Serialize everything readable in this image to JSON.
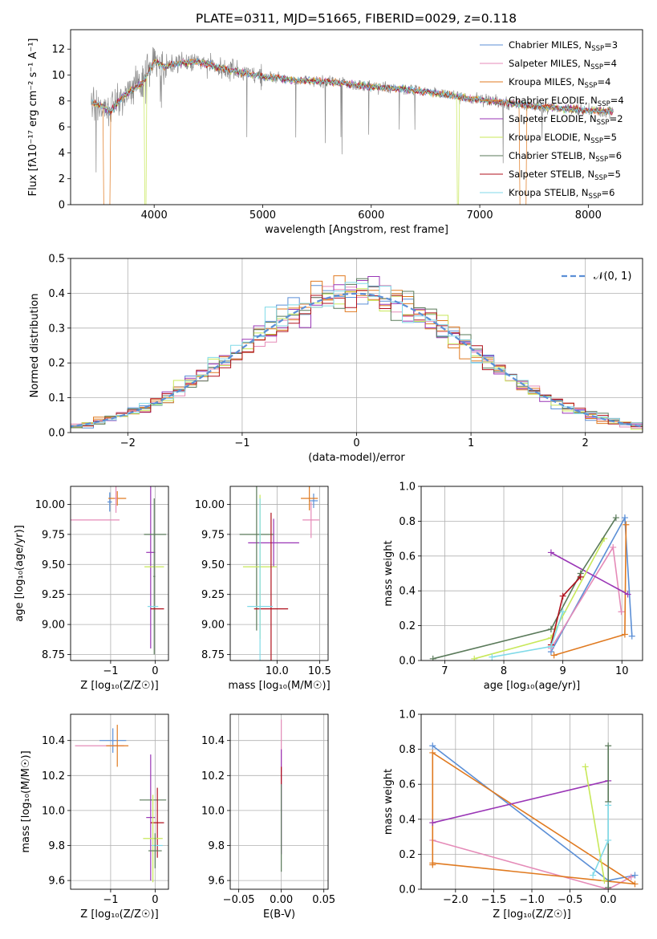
{
  "title": "PLATE=0311, MJD=51665, FIBERID=0029, z=0.118",
  "colors": {
    "chabrier_miles": "#5b8fd6",
    "salpeter_miles": "#e58bb8",
    "kroupa_miles": "#e07a20",
    "chabrier_elodie": "#e07a20",
    "salpeter_elodie": "#9a36b6",
    "kroupa_elodie": "#c8e85a",
    "chabrier_stelib": "#5a7a5a",
    "salpeter_stelib": "#b0101c",
    "kroupa_stelib": "#80dae8",
    "data_gray": "#8c8c8c",
    "normal_curve": "#5b8fd6"
  },
  "chart_data": [
    {
      "type": "line",
      "panel": "spectrum",
      "title": "PLATE=0311, MJD=51665, FIBERID=0029, z=0.118",
      "xlabel": "wavelength [Angstrom, rest frame]",
      "ylabel": "Flux [fλ10⁻¹⁷ erg cm⁻² s⁻¹ A⁻¹]",
      "xlim": [
        3230,
        8500
      ],
      "ylim": [
        0,
        13.5
      ],
      "xticks": [
        4000,
        5000,
        6000,
        7000,
        8000
      ],
      "yticks": [
        0,
        2,
        4,
        6,
        8,
        10,
        12
      ],
      "legend_position": "top-right",
      "legend": [
        "Chabrier MILES, N_SSP=3",
        "Salpeter MILES, N_SSP=4",
        "Kroupa MILES, N_SSP=4",
        "Chabrier ELODIE, N_SSP=4",
        "Salpeter ELODIE, N_SSP=2",
        "Kroupa ELODIE, N_SSP=5",
        "Chabrier STELIB, N_SSP=6",
        "Salpeter STELIB, N_SSP=5",
        "Kroupa STELIB, N_SSP=6"
      ],
      "model_continuum": {
        "x": [
          3420,
          3500,
          3600,
          3700,
          3800,
          3900,
          4000,
          4100,
          4200,
          4400,
          4600,
          4800,
          5000,
          5300,
          5600,
          6000,
          6300,
          6600,
          6900,
          7200,
          7500,
          7800,
          8100,
          8230
        ],
        "y": [
          7.9,
          7.7,
          7.2,
          8.2,
          8.9,
          9.4,
          11.1,
          10.6,
          10.9,
          11.0,
          10.6,
          10.2,
          9.9,
          9.6,
          9.5,
          9.1,
          8.9,
          8.6,
          8.2,
          7.9,
          7.6,
          7.4,
          7.2,
          7.2
        ]
      },
      "gaps": [
        {
          "series": "Chabrier ELODIE",
          "x": [
            3530,
            3595,
            7370,
            7430
          ]
        },
        {
          "series": "Kroupa ELODIE",
          "x": [
            3910,
            3925,
            6790,
            6810
          ]
        }
      ]
    },
    {
      "type": "histogram",
      "panel": "residuals",
      "xlabel": "(data-model)/error",
      "ylabel": "Normed distribution",
      "xlim": [
        -2.5,
        2.5
      ],
      "ylim": [
        0,
        0.5
      ],
      "xticks": [
        -2,
        -1,
        0,
        1,
        2
      ],
      "yticks": [
        0.0,
        0.1,
        0.2,
        0.3,
        0.4,
        0.5
      ],
      "bin_width": 0.1,
      "grid": true,
      "legend_position": "top-right",
      "legend": [
        "𝒩(0, 1)"
      ],
      "reference_curve": "standard normal, mean 0, sigma 1"
    },
    {
      "type": "scatter",
      "panel": "age_vs_Z",
      "xlabel": "Z [log₁₀(Z/Z☉)]",
      "ylabel": "age  [log₁₀(age/yr)]",
      "xlim": [
        -1.9,
        0.3
      ],
      "ylim": [
        8.7,
        10.15
      ],
      "xticks": [
        -1,
        0
      ],
      "yticks": [
        8.75,
        9.0,
        9.25,
        9.5,
        9.75,
        10.0
      ],
      "grid": true,
      "points": [
        {
          "series": "Chabrier MILES",
          "x": -1.02,
          "y": 10.02,
          "xerr": 0.05,
          "yerr": 0.08
        },
        {
          "series": "Salpeter MILES",
          "x": -1.35,
          "y": 9.87,
          "xerr": 0.55,
          "yerr": 0.0
        },
        {
          "series": "Kroupa MILES",
          "x": -0.85,
          "y": 10.05,
          "xerr": 0.2,
          "yerr": 0.06
        },
        {
          "series": "Salpeter MILES",
          "x": -0.88,
          "y": 10.05,
          "xerr": 0.03,
          "yerr": 0.12
        },
        {
          "series": "Salpeter ELODIE",
          "x": -0.1,
          "y": 9.6,
          "xerr": 0.1,
          "yerr": 0.8
        },
        {
          "series": "Chabrier STELIB",
          "x": 0.0,
          "y": 9.75,
          "xerr": 0.25,
          "yerr": 0.0
        },
        {
          "series": "Kroupa ELODIE",
          "x": -0.02,
          "y": 9.48,
          "xerr": 0.22,
          "yerr": 0.0
        },
        {
          "series": "Chabrier STELIB",
          "x": -0.02,
          "y": 9.4,
          "xerr": 0.02,
          "yerr": 0.65
        },
        {
          "series": "Salpeter STELIB",
          "x": 0.05,
          "y": 9.13,
          "xerr": 0.15,
          "yerr": 0.0
        },
        {
          "series": "Kroupa STELIB",
          "x": -0.05,
          "y": 9.15,
          "xerr": 0.12,
          "yerr": 0.0
        }
      ]
    },
    {
      "type": "scatter",
      "panel": "age_vs_mass",
      "xlabel": "mass [log₁₀(M/M☉)]",
      "xlim": [
        9.45,
        10.6
      ],
      "ylim": [
        8.7,
        10.15
      ],
      "xticks": [
        10.0,
        10.5
      ],
      "yticks": [
        8.75,
        9.0,
        9.25,
        9.5,
        9.75,
        10.0
      ],
      "grid": true,
      "points": [
        {
          "series": "Chabrier MILES",
          "x": 10.43,
          "y": 10.03,
          "xerr": 0.05,
          "yerr": 0.06
        },
        {
          "series": "Kroupa MILES",
          "x": 10.38,
          "y": 10.05,
          "xerr": 0.1,
          "yerr": 0.1
        },
        {
          "series": "Salpeter MILES",
          "x": 10.4,
          "y": 9.87,
          "xerr": 0.1,
          "yerr": 0.15
        },
        {
          "series": "Salpeter ELODIE",
          "x": 9.96,
          "y": 9.68,
          "xerr": 0.3,
          "yerr": 0.2
        },
        {
          "series": "Chabrier STELIB",
          "x": 9.76,
          "y": 9.75,
          "xerr": 0.2,
          "yerr": 0.8
        },
        {
          "series": "Kroupa ELODIE",
          "x": 9.8,
          "y": 9.48,
          "xerr": 0.2,
          "yerr": 0.6
        },
        {
          "series": "Salpeter STELIB",
          "x": 9.93,
          "y": 9.13,
          "xerr": 0.2,
          "yerr": 0.8
        },
        {
          "series": "Kroupa STELIB",
          "x": 9.8,
          "y": 9.15,
          "xerr": 0.15,
          "yerr": 0.9
        }
      ]
    },
    {
      "type": "line",
      "panel": "mass_weight_vs_age",
      "xlabel": "age  [log₁₀(age/yr)]",
      "ylabel": "mass weight",
      "xlim": [
        6.6,
        10.35
      ],
      "ylim": [
        0,
        1.0
      ],
      "xticks": [
        7,
        8,
        9,
        10
      ],
      "yticks": [
        0.0,
        0.2,
        0.4,
        0.6,
        0.8,
        1.0
      ],
      "grid": true,
      "series": [
        {
          "name": "Chabrier MILES",
          "x": [
            8.8,
            10.05,
            10.17
          ],
          "y": [
            0.05,
            0.82,
            0.14
          ]
        },
        {
          "name": "Salpeter MILES",
          "x": [
            8.8,
            9.85,
            9.99
          ],
          "y": [
            0.07,
            0.65,
            0.28
          ]
        },
        {
          "name": "Kroupa MILES",
          "x": [
            8.85,
            10.05,
            10.07
          ],
          "y": [
            0.03,
            0.15,
            0.78
          ]
        },
        {
          "name": "Salpeter ELODIE",
          "x": [
            8.8,
            10.1
          ],
          "y": [
            0.62,
            0.38
          ]
        },
        {
          "name": "Kroupa ELODIE",
          "x": [
            7.5,
            8.8,
            9.7
          ],
          "y": [
            0.01,
            0.13,
            0.7
          ]
        },
        {
          "name": "Chabrier STELIB",
          "x": [
            6.8,
            8.8,
            9.3,
            9.9
          ],
          "y": [
            0.01,
            0.18,
            0.5,
            0.82
          ]
        },
        {
          "name": "Salpeter STELIB",
          "x": [
            8.8,
            9.0,
            9.3
          ],
          "y": [
            0.09,
            0.37,
            0.48
          ]
        },
        {
          "name": "Kroupa STELIB",
          "x": [
            7.8,
            8.8,
            9.0
          ],
          "y": [
            0.02,
            0.08,
            0.28
          ]
        }
      ]
    },
    {
      "type": "scatter",
      "panel": "mass_vs_Z",
      "xlabel": "Z [log₁₀(Z/Z☉)]",
      "ylabel": "mass [log₁₀(M/M☉)]",
      "xlim": [
        -1.9,
        0.3
      ],
      "ylim": [
        9.55,
        10.55
      ],
      "xticks": [
        -1,
        0
      ],
      "yticks": [
        9.6,
        9.8,
        10.0,
        10.2,
        10.4
      ],
      "grid": true,
      "points": [
        {
          "series": "Chabrier MILES",
          "x": -0.95,
          "y": 10.4,
          "xerr": 0.3,
          "yerr": 0.07
        },
        {
          "series": "Salpeter MILES",
          "x": -1.25,
          "y": 10.37,
          "xerr": 0.55,
          "yerr": 0.0
        },
        {
          "series": "Kroupa MILES",
          "x": -0.85,
          "y": 10.37,
          "xerr": 0.25,
          "yerr": 0.12
        },
        {
          "series": "Salpeter ELODIE",
          "x": -0.1,
          "y": 9.96,
          "xerr": 0.1,
          "yerr": 0.36
        },
        {
          "series": "Chabrier STELIB",
          "x": -0.05,
          "y": 10.06,
          "xerr": 0.3,
          "yerr": 0.0
        },
        {
          "series": "Salpeter STELIB",
          "x": 0.05,
          "y": 9.93,
          "xerr": 0.15,
          "yerr": 0.2
        },
        {
          "series": "Kroupa ELODIE",
          "x": -0.05,
          "y": 9.84,
          "xerr": 0.22,
          "yerr": 0.25
        },
        {
          "series": "Kroupa STELIB",
          "x": 0.05,
          "y": 9.8,
          "xerr": 0.12,
          "yerr": 0.0
        },
        {
          "series": "Chabrier STELIB",
          "x": 0.0,
          "y": 9.77,
          "xerr": 0.15,
          "yerr": 0.1
        }
      ]
    },
    {
      "type": "scatter",
      "panel": "mass_vs_ebv",
      "xlabel": "E(B-V)",
      "xlim": [
        -0.06,
        0.055
      ],
      "ylim": [
        9.55,
        10.55
      ],
      "xticks": [
        -0.05,
        0.0,
        0.05
      ],
      "yticks": [
        9.6,
        9.8,
        10.0,
        10.2,
        10.4
      ],
      "grid": true,
      "points": [
        {
          "series": "Salpeter MILES",
          "x": 0.0,
          "y": 10.37,
          "xerr": 0.0,
          "yerr": 0.15
        },
        {
          "series": "Salpeter ELODIE",
          "x": 0.0,
          "y": 10.05,
          "xerr": 0.0,
          "yerr": 0.3
        },
        {
          "series": "Salpeter STELIB",
          "x": 0.0,
          "y": 10.2,
          "xerr": 0.0,
          "yerr": 0.05
        },
        {
          "series": "Chabrier STELIB",
          "x": 0.0,
          "y": 9.9,
          "xerr": 0.0,
          "yerr": 0.25
        }
      ]
    },
    {
      "type": "line",
      "panel": "mass_weight_vs_Z",
      "xlabel": "Z [log₁₀(Z/Z☉)]",
      "ylabel": "mass weight",
      "xlim": [
        -2.45,
        0.45
      ],
      "ylim": [
        0,
        1.0
      ],
      "xticks": [
        -2.0,
        -1.5,
        -1.0,
        -0.5,
        0.0
      ],
      "yticks": [
        0.0,
        0.2,
        0.4,
        0.6,
        0.8,
        1.0
      ],
      "grid": true,
      "series": [
        {
          "name": "Chabrier MILES",
          "x": [
            -2.3,
            0.0,
            0.35
          ],
          "y": [
            0.82,
            0.05,
            0.08
          ]
        },
        {
          "name": "Salpeter MILES",
          "x": [
            -2.3,
            0.0,
            0.3
          ],
          "y": [
            0.28,
            0.0,
            0.07
          ]
        },
        {
          "name": "Kroupa MILES",
          "x": [
            -2.3,
            -2.3,
            0.35,
            -2.3
          ],
          "y": [
            0.14,
            0.78,
            0.03,
            0.15
          ]
        },
        {
          "name": "Salpeter ELODIE",
          "x": [
            -2.3,
            0.0
          ],
          "y": [
            0.38,
            0.62
          ]
        },
        {
          "name": "Kroupa ELODIE",
          "x": [
            -0.3,
            -0.05
          ],
          "y": [
            0.7,
            0.05
          ]
        },
        {
          "name": "Chabrier STELIB",
          "x": [
            0.0,
            0.0,
            0.0
          ],
          "y": [
            0.01,
            0.82,
            0.5
          ]
        },
        {
          "name": "Kroupa STELIB",
          "x": [
            -0.2,
            0.0,
            0.0
          ],
          "y": [
            0.08,
            0.28,
            0.48
          ]
        }
      ]
    }
  ]
}
